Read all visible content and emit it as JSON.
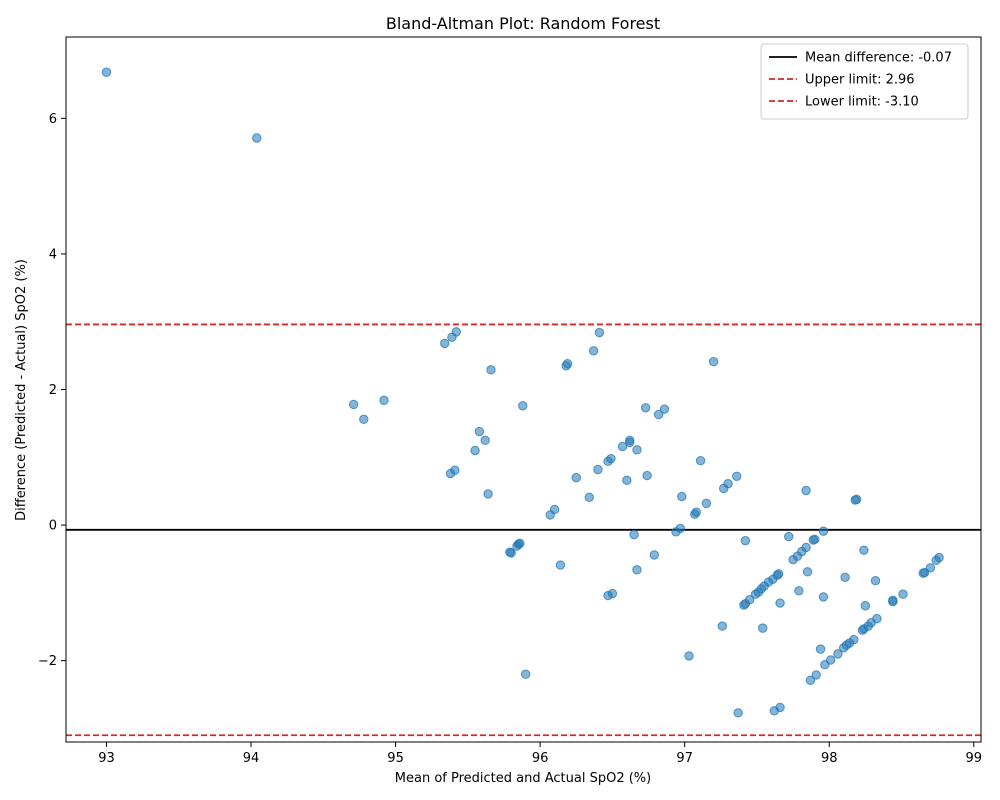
{
  "chart_data": {
    "type": "scatter",
    "title": "Bland-Altman Plot: Random Forest",
    "xlabel": "Mean of Predicted and Actual SpO2 (%)",
    "ylabel": "Difference (Predicted - Actual) SpO2 (%)",
    "xlim": [
      92.72,
      99.05
    ],
    "ylim": [
      -3.2,
      7.2
    ],
    "xticks": [
      "93",
      "94",
      "95",
      "96",
      "97",
      "98",
      "99"
    ],
    "yticks": [
      "−2",
      "0",
      "2",
      "4",
      "6"
    ],
    "grid": false,
    "legend_position": "top-right",
    "point_color": "#1f77b4",
    "reference_lines": [
      {
        "label": "Mean difference: -0.07",
        "value": -0.07,
        "color": "#000000",
        "style": "solid"
      },
      {
        "label": "Upper limit: 2.96",
        "value": 2.96,
        "color": "#d62728",
        "style": "dashed"
      },
      {
        "label": "Lower limit: -3.10",
        "value": -3.1,
        "color": "#d62728",
        "style": "dashed"
      }
    ],
    "points": [
      [
        93.0,
        6.68
      ],
      [
        94.04,
        5.71
      ],
      [
        95.42,
        2.85
      ],
      [
        95.39,
        2.77
      ],
      [
        95.34,
        2.68
      ],
      [
        95.66,
        2.29
      ],
      [
        96.41,
        2.84
      ],
      [
        96.37,
        2.57
      ],
      [
        96.19,
        2.38
      ],
      [
        96.18,
        2.35
      ],
      [
        97.2,
        2.41
      ],
      [
        94.71,
        1.78
      ],
      [
        94.92,
        1.84
      ],
      [
        94.78,
        1.56
      ],
      [
        95.88,
        1.76
      ],
      [
        96.73,
        1.73
      ],
      [
        96.86,
        1.71
      ],
      [
        96.82,
        1.63
      ],
      [
        95.58,
        1.38
      ],
      [
        95.62,
        1.25
      ],
      [
        95.55,
        1.1
      ],
      [
        96.62,
        1.25
      ],
      [
        96.62,
        1.22
      ],
      [
        96.57,
        1.16
      ],
      [
        96.67,
        1.11
      ],
      [
        96.49,
        0.98
      ],
      [
        96.47,
        0.94
      ],
      [
        97.11,
        0.95
      ],
      [
        96.4,
        0.82
      ],
      [
        95.41,
        0.81
      ],
      [
        95.38,
        0.76
      ],
      [
        96.25,
        0.7
      ],
      [
        96.74,
        0.73
      ],
      [
        97.36,
        0.72
      ],
      [
        96.6,
        0.66
      ],
      [
        97.3,
        0.61
      ],
      [
        97.27,
        0.54
      ],
      [
        97.84,
        0.51
      ],
      [
        95.64,
        0.46
      ],
      [
        96.34,
        0.41
      ],
      [
        96.98,
        0.42
      ],
      [
        98.18,
        0.37
      ],
      [
        98.19,
        0.38
      ],
      [
        97.15,
        0.32
      ],
      [
        96.1,
        0.23
      ],
      [
        96.07,
        0.15
      ],
      [
        97.08,
        0.19
      ],
      [
        97.07,
        0.16
      ],
      [
        96.97,
        -0.05
      ],
      [
        96.94,
        -0.1
      ],
      [
        97.96,
        -0.09
      ],
      [
        96.65,
        -0.14
      ],
      [
        97.72,
        -0.17
      ],
      [
        97.89,
        -0.22
      ],
      [
        97.9,
        -0.21
      ],
      [
        97.42,
        -0.23
      ],
      [
        95.85,
        -0.28
      ],
      [
        95.86,
        -0.27
      ],
      [
        95.84,
        -0.31
      ],
      [
        97.84,
        -0.33
      ],
      [
        98.24,
        -0.37
      ],
      [
        97.81,
        -0.39
      ],
      [
        95.8,
        -0.41
      ],
      [
        95.79,
        -0.4
      ],
      [
        96.79,
        -0.44
      ],
      [
        97.78,
        -0.46
      ],
      [
        97.75,
        -0.51
      ],
      [
        98.76,
        -0.48
      ],
      [
        98.74,
        -0.52
      ],
      [
        96.14,
        -0.59
      ],
      [
        98.7,
        -0.63
      ],
      [
        96.67,
        -0.66
      ],
      [
        97.85,
        -0.69
      ],
      [
        98.66,
        -0.7
      ],
      [
        98.65,
        -0.71
      ],
      [
        97.65,
        -0.72
      ],
      [
        97.64,
        -0.74
      ],
      [
        98.11,
        -0.77
      ],
      [
        97.61,
        -0.8
      ],
      [
        97.58,
        -0.84
      ],
      [
        98.32,
        -0.82
      ],
      [
        97.55,
        -0.9
      ],
      [
        97.53,
        -0.94
      ],
      [
        97.79,
        -0.97
      ],
      [
        97.51,
        -0.99
      ],
      [
        97.49,
        -1.02
      ],
      [
        96.5,
        -1.01
      ],
      [
        96.47,
        -1.04
      ],
      [
        98.51,
        -1.02
      ],
      [
        97.96,
        -1.06
      ],
      [
        97.45,
        -1.1
      ],
      [
        98.44,
        -1.11
      ],
      [
        98.44,
        -1.13
      ],
      [
        97.42,
        -1.16
      ],
      [
        97.41,
        -1.18
      ],
      [
        97.66,
        -1.15
      ],
      [
        98.25,
        -1.19
      ],
      [
        98.33,
        -1.38
      ],
      [
        98.29,
        -1.44
      ],
      [
        98.27,
        -1.49
      ],
      [
        98.24,
        -1.53
      ],
      [
        97.26,
        -1.49
      ],
      [
        97.54,
        -1.52
      ],
      [
        98.23,
        -1.55
      ],
      [
        98.17,
        -1.69
      ],
      [
        98.14,
        -1.74
      ],
      [
        98.12,
        -1.77
      ],
      [
        98.1,
        -1.81
      ],
      [
        97.94,
        -1.83
      ],
      [
        98.06,
        -1.9
      ],
      [
        97.03,
        -1.93
      ],
      [
        98.01,
        -1.99
      ],
      [
        97.97,
        -2.06
      ],
      [
        97.91,
        -2.21
      ],
      [
        95.9,
        -2.2
      ],
      [
        97.87,
        -2.29
      ],
      [
        97.66,
        -2.69
      ],
      [
        97.62,
        -2.74
      ],
      [
        97.37,
        -2.77
      ]
    ]
  }
}
